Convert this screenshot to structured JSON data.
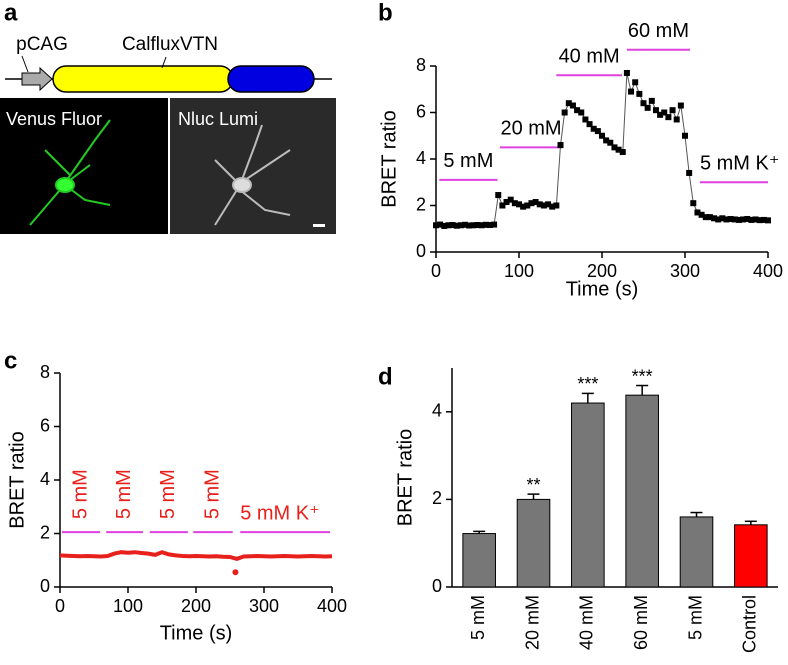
{
  "diagram": {
    "label": "a",
    "promoter": "pCAG",
    "construct": "CalfluxVTN",
    "images": [
      "Venus Fluor",
      "Nluc Lumi"
    ]
  },
  "chart_data": [
    {
      "type": "line",
      "label": "b",
      "xlabel": "Time (s)",
      "ylabel": "BRET ratio",
      "xlim": [
        0,
        400
      ],
      "xticks": [
        0,
        100,
        200,
        300,
        400
      ],
      "ylim": [
        0,
        8
      ],
      "yticks": [
        0,
        2,
        4,
        6,
        8
      ],
      "color": "#000000",
      "line_color": "#555555",
      "markers": true,
      "x": [
        0,
        5,
        10,
        15,
        20,
        25,
        30,
        35,
        40,
        45,
        50,
        55,
        60,
        65,
        70,
        75,
        80,
        85,
        90,
        95,
        100,
        105,
        110,
        115,
        120,
        125,
        130,
        135,
        140,
        145,
        150,
        155,
        160,
        165,
        170,
        175,
        180,
        185,
        190,
        195,
        200,
        205,
        210,
        215,
        220,
        225,
        230,
        235,
        240,
        245,
        250,
        255,
        260,
        265,
        270,
        275,
        280,
        285,
        290,
        295,
        300,
        305,
        310,
        315,
        320,
        325,
        330,
        335,
        340,
        345,
        350,
        355,
        360,
        365,
        370,
        375,
        380,
        385,
        390,
        395,
        400
      ],
      "values": [
        1.15,
        1.18,
        1.12,
        1.15,
        1.16,
        1.13,
        1.15,
        1.17,
        1.14,
        1.15,
        1.16,
        1.15,
        1.17,
        1.16,
        1.18,
        2.45,
        2.0,
        2.15,
        2.25,
        2.1,
        2.05,
        1.95,
        2.0,
        2.1,
        2.15,
        2.05,
        2.0,
        2.05,
        1.95,
        2.0,
        4.6,
        6.0,
        6.4,
        6.3,
        6.1,
        6.0,
        5.7,
        5.5,
        5.3,
        5.2,
        5.0,
        4.8,
        4.7,
        4.5,
        4.4,
        4.3,
        7.7,
        6.9,
        7.3,
        6.8,
        6.4,
        6.2,
        6.5,
        6.1,
        5.9,
        6.0,
        5.8,
        6.1,
        5.7,
        6.3,
        5.0,
        3.4,
        2.1,
        1.7,
        1.6,
        1.5,
        1.5,
        1.45,
        1.4,
        1.45,
        1.4,
        1.42,
        1.4,
        1.38,
        1.4,
        1.42,
        1.38,
        1.4,
        1.37,
        1.38,
        1.36
      ],
      "stimulus_color": "#e040e0",
      "label_color": "#000000",
      "stimuli": [
        {
          "label": "5 mM",
          "start": 4,
          "end": 74,
          "y": 3.1,
          "rotated": false
        },
        {
          "label": "20 mM",
          "start": 77,
          "end": 152,
          "y": 4.5,
          "rotated": false
        },
        {
          "label": "40 mM",
          "start": 145,
          "end": 224,
          "y": 7.6,
          "rotated": false
        },
        {
          "label": "60 mM",
          "start": 230,
          "end": 306,
          "y": 8.7,
          "rotated": false
        },
        {
          "label": "5 mM K⁺",
          "start": 318,
          "end": 400,
          "y": 3.0,
          "rotated": false
        }
      ]
    },
    {
      "type": "line",
      "label": "c",
      "xlabel": "Time (s)",
      "ylabel": "BRET ratio",
      "xlim": [
        0,
        400
      ],
      "xticks": [
        0,
        100,
        200,
        300,
        400
      ],
      "ylim": [
        0,
        8
      ],
      "yticks": [
        0,
        2,
        4,
        6,
        8
      ],
      "color": "#e8201c",
      "line_color": "#e8201c",
      "markers": false,
      "x": [
        0,
        10,
        20,
        30,
        40,
        50,
        60,
        70,
        80,
        90,
        100,
        110,
        120,
        130,
        140,
        150,
        160,
        170,
        180,
        190,
        200,
        210,
        220,
        230,
        240,
        250,
        260,
        270,
        280,
        290,
        300,
        310,
        320,
        330,
        340,
        350,
        360,
        370,
        380,
        390,
        400
      ],
      "values": [
        1.18,
        1.17,
        1.16,
        1.15,
        1.16,
        1.15,
        1.14,
        1.16,
        1.25,
        1.3,
        1.28,
        1.3,
        1.27,
        1.25,
        1.2,
        1.3,
        1.22,
        1.18,
        1.16,
        1.15,
        1.16,
        1.15,
        1.14,
        1.15,
        1.13,
        1.12,
        1.05,
        1.14,
        1.15,
        1.16,
        1.15,
        1.14,
        1.15,
        1.16,
        1.15,
        1.14,
        1.15,
        1.16,
        1.15,
        1.14,
        1.15
      ],
      "outliers": {
        "x": [
          258
        ],
        "values": [
          0.55
        ]
      },
      "stimulus_color": "#e040e0",
      "label_color": "#e8201c",
      "stimuli": [
        {
          "label": "5 mM",
          "start": 3,
          "end": 59,
          "y": 2.05,
          "rotated": true
        },
        {
          "label": "5 mM",
          "start": 68,
          "end": 122,
          "y": 2.05,
          "rotated": true
        },
        {
          "label": "5 mM",
          "start": 132,
          "end": 188,
          "y": 2.05,
          "rotated": true
        },
        {
          "label": "5 mM",
          "start": 196,
          "end": 254,
          "y": 2.05,
          "rotated": true
        },
        {
          "label": "5 mM K⁺",
          "start": 265,
          "end": 397,
          "y": 2.05,
          "rotated": false
        }
      ]
    },
    {
      "type": "bar",
      "label": "d",
      "ylabel": "BRET ratio",
      "categories": [
        "5 mM",
        "20 mM",
        "40 mM",
        "60 mM",
        "5 mM",
        "Control"
      ],
      "values": [
        1.22,
        2.0,
        4.2,
        4.38,
        1.6,
        1.42
      ],
      "errors": [
        0.05,
        0.12,
        0.22,
        0.22,
        0.1,
        0.08
      ],
      "colors": [
        "#777777",
        "#777777",
        "#777777",
        "#777777",
        "#777777",
        "#ff0000"
      ],
      "significance": [
        null,
        "**",
        "***",
        "***",
        null,
        null
      ],
      "ylim": [
        0,
        5
      ],
      "yticks": [
        0,
        2,
        4
      ]
    }
  ]
}
